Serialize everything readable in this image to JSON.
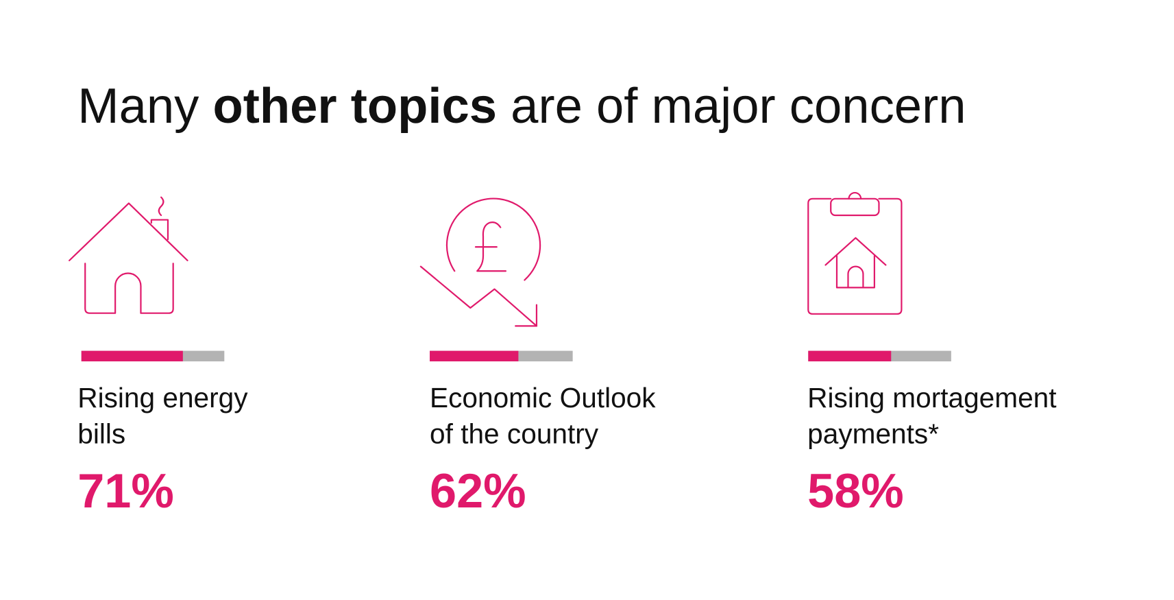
{
  "header": {
    "title": {
      "before": "Many ",
      "emphasis": "other topics",
      "after": " are of major concern"
    }
  },
  "items": [
    {
      "label": [
        "Rising energy",
        "bills"
      ],
      "value": 71,
      "value_label": "71%"
    },
    {
      "label": [
        "Economic Outlook",
        "of the country"
      ],
      "value": 62,
      "value_label": "62%"
    },
    {
      "label": [
        "Rising mortagement",
        "payments*"
      ],
      "value": 58,
      "value_label": "58%"
    }
  ]
}
